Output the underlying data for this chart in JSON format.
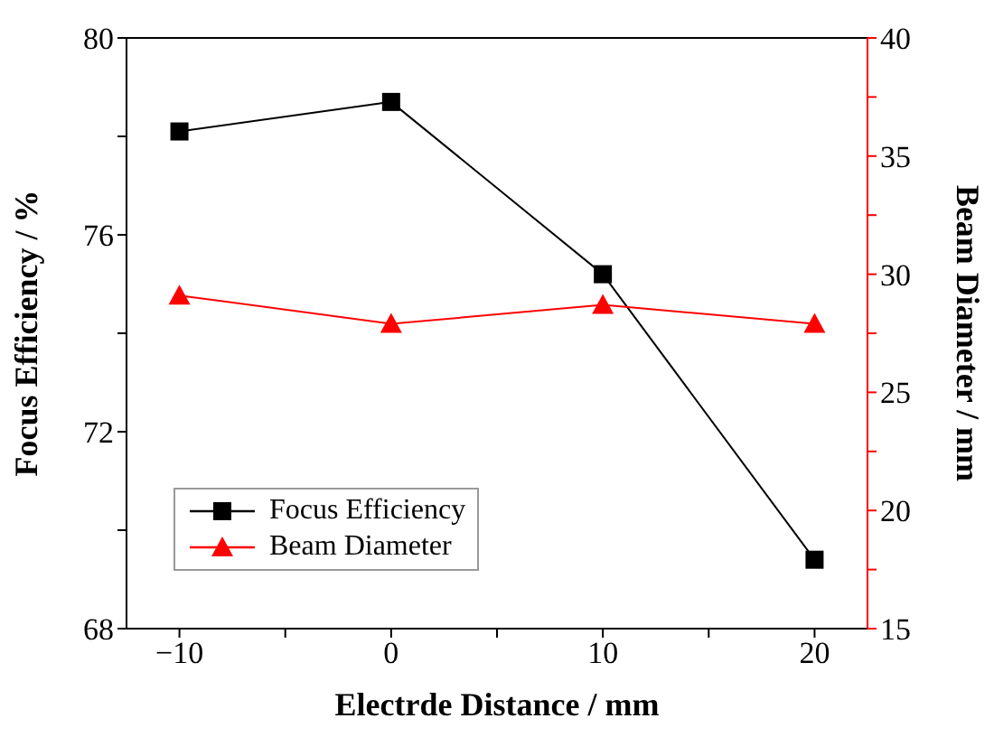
{
  "chart_data": {
    "type": "line",
    "xlabel": "Electrde Distance / mm",
    "ylabel": "Focus Efficiency / %",
    "y2label": "Beam Diameter / mm",
    "x": [
      -10,
      0,
      10,
      20
    ],
    "series": [
      {
        "name": "Focus Efficiency",
        "color": "#000000",
        "marker": "square",
        "values": [
          78.1,
          78.7,
          75.2,
          69.4
        ]
      },
      {
        "name": "Beam Diameter",
        "color": "#ff0000",
        "marker": "triangle",
        "axis": "y2",
        "values": [
          29.1,
          27.9,
          28.7,
          27.9
        ]
      }
    ],
    "xlim": [
      -12.5,
      22.5
    ],
    "xticks": [
      {
        "value": -10,
        "label": "−10"
      },
      {
        "value": -5,
        "label": null
      },
      0,
      {
        "value": 5,
        "label": null
      },
      10,
      {
        "value": 15,
        "label": null
      },
      20
    ],
    "ylim": [
      68,
      80
    ],
    "yticks": [
      68,
      {
        "value": 70,
        "label": null
      },
      72,
      {
        "value": 74,
        "label": null
      },
      76,
      {
        "value": 78,
        "label": null
      },
      80
    ],
    "y2lim": [
      15,
      40
    ],
    "y2ticks": [
      15,
      {
        "value": 17.5,
        "label": null
      },
      20,
      {
        "value": 22.5,
        "label": null
      },
      25,
      {
        "value": 27.5,
        "label": null
      },
      30,
      {
        "value": 32.5,
        "label": null
      },
      35,
      {
        "value": 37.5,
        "label": null
      },
      40
    ],
    "legend": "bottom left",
    "grid": false,
    "line_style": "solid"
  }
}
